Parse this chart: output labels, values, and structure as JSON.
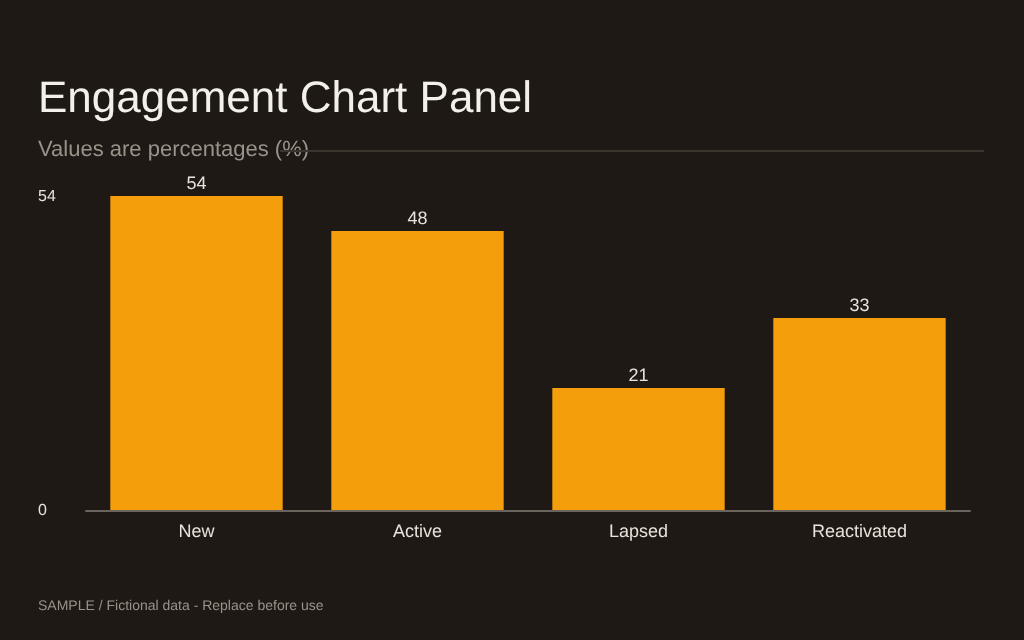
{
  "chart_data": {
    "type": "bar",
    "title": "Engagement Chart Panel",
    "subtitle": "Values are percentages (%)",
    "categories": [
      "New",
      "Active",
      "Lapsed",
      "Reactivated"
    ],
    "values": [
      54,
      48,
      21,
      33
    ],
    "color": "#f59e0b",
    "ylim": [
      0,
      54
    ],
    "yticks": [
      0,
      54
    ],
    "grid": false,
    "data_labels": true,
    "annotations": [
      "SAMPLE / Fictional data - Replace before use"
    ]
  }
}
